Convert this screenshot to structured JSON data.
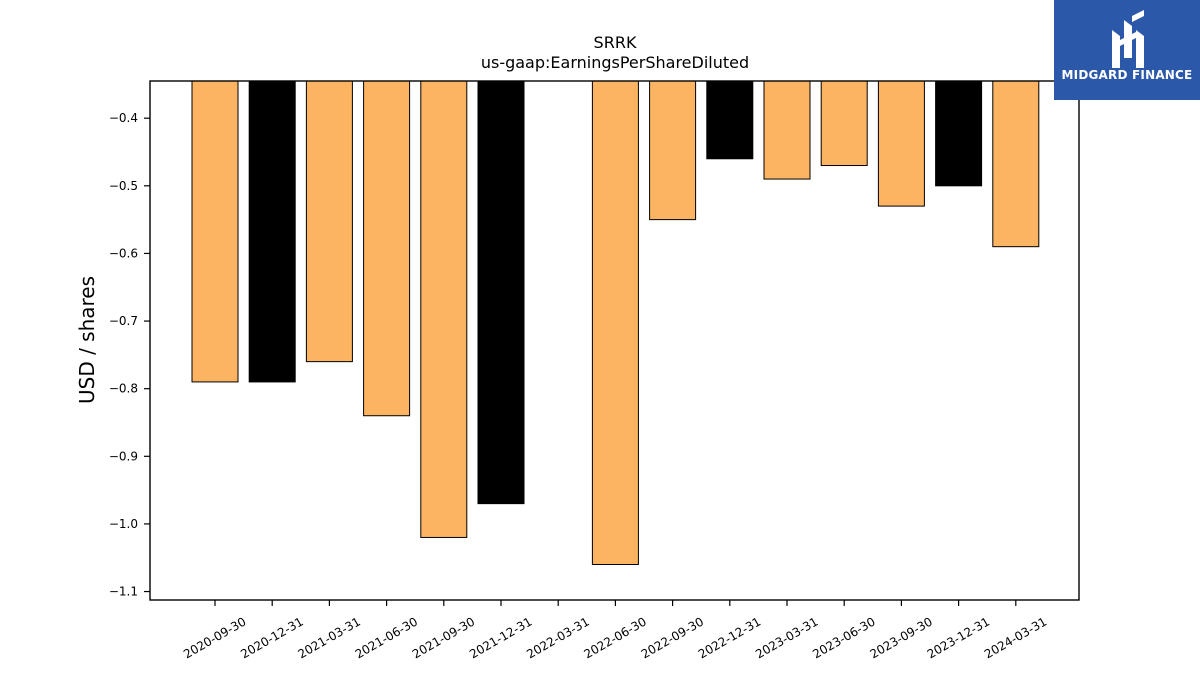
{
  "chart_data": {
    "type": "bar",
    "title": "SRRK",
    "subtitle": "us-gaap:EarningsPerShareDiluted",
    "xlabel": "",
    "ylabel": "USD / shares",
    "categories": [
      "2020-09-30",
      "2020-12-31",
      "2021-03-31",
      "2021-06-30",
      "2021-09-30",
      "2021-12-31",
      "2022-03-31",
      "2022-06-30",
      "2022-09-30",
      "2022-12-31",
      "2023-03-31",
      "2023-06-30",
      "2023-09-30",
      "2023-12-31",
      "2024-03-31"
    ],
    "values": [
      -0.79,
      -0.79,
      -0.76,
      -0.84,
      -1.02,
      -0.97,
      null,
      -1.06,
      -0.55,
      -0.46,
      -0.49,
      -0.47,
      -0.53,
      -0.5,
      -0.59
    ],
    "bar_colors": [
      "#fdb462",
      "#000000",
      "#fdb462",
      "#fdb462",
      "#fdb462",
      "#000000",
      "#fdb462",
      "#fdb462",
      "#fdb462",
      "#000000",
      "#fdb462",
      "#fdb462",
      "#fdb462",
      "#000000",
      "#fdb462"
    ],
    "ylim": [
      -1.1125,
      -0.345
    ],
    "yticks": [
      -0.4,
      -0.5,
      -0.6,
      -0.7,
      -0.8,
      -0.9,
      -1.0,
      -1.1
    ],
    "ytick_labels": [
      "−0.4",
      "−0.5",
      "−0.6",
      "−0.7",
      "−0.8",
      "−0.9",
      "−1.0",
      "−1.1"
    ],
    "grid": false,
    "legend": "none"
  },
  "logo": {
    "text": "MIDGARD FINANCE",
    "background": "#2b58a8"
  }
}
